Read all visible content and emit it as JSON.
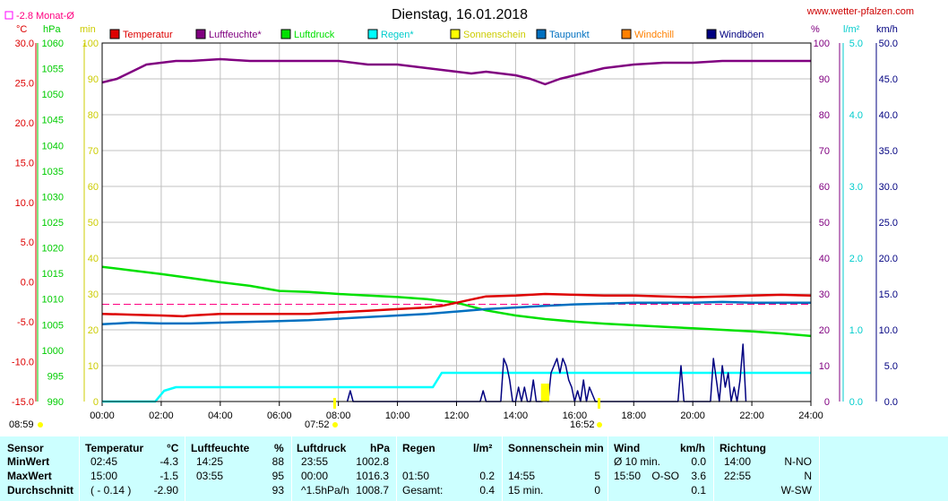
{
  "chart_data": {
    "type": "line",
    "title": "Dienstag, 16.01.2018",
    "source": "www.wetter-pfalzen.com",
    "monthly_avg_label": "-2.8 Monat-Ø",
    "monthly_avg_value": -2.8,
    "legend": [
      {
        "name": "Temperatur",
        "color": "#dd0000"
      },
      {
        "name": "Luftfeuchte*",
        "color": "#800080"
      },
      {
        "name": "Luftdruck",
        "color": "#00e000"
      },
      {
        "name": "Regen*",
        "color": "#00ffff"
      },
      {
        "name": "Sonnenschein",
        "color": "#ffff00"
      },
      {
        "name": "Taupunkt",
        "color": "#0070c0"
      },
      {
        "name": "Windchill",
        "color": "#ff8000"
      },
      {
        "name": "Windböen",
        "color": "#000080"
      }
    ],
    "axes": {
      "temp": {
        "unit": "°C",
        "color": "#dd0000",
        "ylim": [
          -15,
          30
        ],
        "ticks": [
          "30.0",
          "25.0",
          "20.0",
          "15.0",
          "10.0",
          "5.0",
          "0.0",
          "-5.0",
          "-10.0",
          "-15.0"
        ]
      },
      "pressure": {
        "unit": "hPa",
        "color": "#00cc00",
        "ylim": [
          990,
          1060
        ],
        "ticks": [
          "1060",
          "1055",
          "1050",
          "1045",
          "1040",
          "1035",
          "1030",
          "1025",
          "1020",
          "1015",
          "1010",
          "1005",
          "1000",
          "995",
          "990"
        ]
      },
      "sun": {
        "unit": "min",
        "color": "#cccc00",
        "ylim": [
          0,
          100
        ],
        "ticks": [
          "100",
          "90",
          "80",
          "70",
          "60",
          "50",
          "40",
          "30",
          "20",
          "10",
          "0"
        ]
      },
      "humidity": {
        "unit": "%",
        "color": "#800080",
        "ylim": [
          0,
          100
        ],
        "ticks": [
          "100",
          "90",
          "80",
          "70",
          "60",
          "50",
          "40",
          "30",
          "20",
          "10",
          "0"
        ]
      },
      "rain": {
        "unit": "l/m²",
        "color": "#00cccc",
        "ylim": [
          0,
          5
        ],
        "ticks": [
          "5.0",
          "4.0",
          "3.0",
          "2.0",
          "1.0",
          "0.0"
        ]
      },
      "wind": {
        "unit": "km/h",
        "color": "#000080",
        "ylim": [
          0,
          50
        ],
        "ticks": [
          "50.0",
          "45.0",
          "40.0",
          "35.0",
          "30.0",
          "25.0",
          "20.0",
          "15.0",
          "10.0",
          "5.0",
          "0.0"
        ]
      }
    },
    "x_ticks": [
      "00:00",
      "02:00",
      "04:00",
      "06:00",
      "08:00",
      "10:00",
      "12:00",
      "14:00",
      "16:00",
      "18:00",
      "20:00",
      "22:00",
      "24:00"
    ],
    "xlim": [
      0,
      24
    ],
    "grid": true,
    "sunrise": "07:52",
    "sunset": "16:52",
    "moonrise": "08:59",
    "series": [
      {
        "name": "Luftfeuchte*",
        "axis": "humidity",
        "color": "#800080",
        "x": [
          0,
          0.5,
          1,
          1.5,
          2,
          2.5,
          3,
          4,
          5,
          6,
          7,
          8,
          9,
          10,
          10.5,
          11,
          11.5,
          12,
          12.5,
          13,
          14,
          14.5,
          15,
          15.5,
          16,
          16.5,
          17,
          18,
          19,
          20,
          21,
          22,
          23,
          24
        ],
        "y": [
          89,
          90,
          92,
          94,
          94.5,
          95,
          95,
          95.5,
          95,
          95,
          95,
          95,
          94,
          94,
          93.5,
          93,
          92.5,
          92,
          91.5,
          92,
          91,
          90,
          88.5,
          90,
          91,
          92,
          93,
          94,
          94.5,
          94.5,
          95,
          95,
          95,
          95
        ]
      },
      {
        "name": "Luftdruck",
        "axis": "pressure",
        "color": "#00e000",
        "x": [
          0,
          1,
          2,
          3,
          4,
          5,
          6,
          7,
          8,
          9,
          10,
          11,
          12,
          13,
          14,
          15,
          16,
          17,
          18,
          19,
          20,
          21,
          22,
          23,
          24
        ],
        "y": [
          1016.3,
          1015.6,
          1014.9,
          1014.1,
          1013.3,
          1012.6,
          1011.6,
          1011.4,
          1011,
          1010.7,
          1010.4,
          1010,
          1009.3,
          1007.8,
          1006.8,
          1006.1,
          1005.6,
          1005.2,
          1004.9,
          1004.6,
          1004.3,
          1004,
          1003.7,
          1003.3,
          1002.8
        ]
      },
      {
        "name": "Temperatur",
        "axis": "temp",
        "color": "#dd0000",
        "x": [
          0,
          1,
          2,
          2.75,
          3,
          4,
          5,
          6,
          7,
          8,
          9,
          10,
          11,
          11.5,
          12,
          12.5,
          13,
          14,
          15,
          16,
          17,
          18,
          19,
          20,
          21,
          22,
          23,
          24
        ],
        "y": [
          -4.0,
          -4.1,
          -4.2,
          -4.3,
          -4.2,
          -4.0,
          -4.0,
          -4.0,
          -4.0,
          -3.8,
          -3.6,
          -3.4,
          -3.2,
          -3.0,
          -2.6,
          -2.2,
          -1.8,
          -1.7,
          -1.5,
          -1.6,
          -1.7,
          -1.7,
          -1.8,
          -1.9,
          -1.8,
          -1.7,
          -1.6,
          -1.7
        ]
      },
      {
        "name": "Taupunkt",
        "axis": "temp",
        "color": "#0070c0",
        "x": [
          0,
          1,
          2,
          3,
          4,
          5,
          6,
          7,
          8,
          9,
          10,
          11,
          12,
          13,
          14,
          15,
          16,
          17,
          18,
          19,
          20,
          21,
          22,
          23,
          24
        ],
        "y": [
          -5.3,
          -5.1,
          -5.2,
          -5.2,
          -5.1,
          -5.0,
          -4.9,
          -4.8,
          -4.6,
          -4.4,
          -4.2,
          -4.0,
          -3.7,
          -3.4,
          -3.2,
          -3.0,
          -2.8,
          -2.7,
          -2.6,
          -2.6,
          -2.6,
          -2.5,
          -2.6,
          -2.6,
          -2.6
        ]
      },
      {
        "name": "Regen*",
        "axis": "rain",
        "color": "#00ffff",
        "x": [
          0,
          1.8,
          2.1,
          2.5,
          3,
          4,
          5,
          6,
          7,
          8,
          9,
          10,
          11,
          11.2,
          11.5,
          12,
          13,
          14,
          16,
          18,
          20,
          22,
          24
        ],
        "y": [
          0,
          0,
          0.15,
          0.2,
          0.2,
          0.2,
          0.2,
          0.2,
          0.2,
          0.2,
          0.2,
          0.2,
          0.2,
          0.2,
          0.4,
          0.4,
          0.4,
          0.4,
          0.4,
          0.4,
          0.4,
          0.4,
          0.4
        ]
      },
      {
        "name": "Windböen",
        "axis": "wind",
        "color": "#000080",
        "x": [
          8.3,
          8.4,
          8.5,
          12.8,
          12.9,
          13.0,
          13.5,
          13.6,
          13.7,
          13.8,
          13.9,
          14.0,
          14.1,
          14.2,
          14.3,
          14.4,
          14.5,
          14.6,
          14.7,
          14.8,
          14.9,
          15.0,
          15.1,
          15.2,
          15.3,
          15.4,
          15.5,
          15.6,
          15.7,
          15.8,
          15.9,
          16.0,
          16.1,
          16.2,
          16.3,
          16.4,
          16.5,
          16.6,
          16.7,
          19.5,
          19.6,
          19.7,
          20.6,
          20.7,
          20.8,
          20.9,
          21.0,
          21.1,
          21.2,
          21.3,
          21.4,
          21.5,
          21.6,
          21.7,
          21.8
        ],
        "y": [
          0,
          1.5,
          0,
          0,
          1.5,
          0,
          0,
          6,
          5,
          3,
          0,
          0,
          2,
          0,
          2,
          0,
          0,
          3,
          0,
          0,
          0,
          2,
          0,
          4,
          5,
          6,
          4,
          6,
          5,
          3,
          2,
          0,
          1.5,
          0,
          3,
          0,
          2,
          1,
          0,
          0,
          5,
          0,
          0,
          6,
          3,
          0,
          5,
          2,
          4,
          0,
          2,
          0,
          3,
          8,
          0
        ]
      },
      {
        "name": "Sonnenschein",
        "axis": "sun",
        "color": "#ffff00",
        "x": [
          14.95,
          15.05
        ],
        "y": [
          5,
          5
        ]
      }
    ],
    "monthly_avg_line": {
      "axis": "temp",
      "value": -2.8,
      "color": "#ff0080"
    }
  },
  "table": {
    "headers": {
      "sensor": "Sensor",
      "temperatur": "Temperatur",
      "temperatur_unit": "°C",
      "luftfeuchte": "Luftfeuchte",
      "luftfeuchte_unit": "%",
      "luftdruck": "Luftdruck",
      "luftdruck_unit": "hPa",
      "regen": "Regen",
      "regen_unit": "l/m²",
      "sonnenschein": "Sonnenschein min",
      "wind": "Wind",
      "wind_unit": "km/h",
      "richtung": "Richtung"
    },
    "rows": [
      {
        "label": "MinWert",
        "temp_time": "02:45",
        "temp_val": "-4.3",
        "hum_time": "14:25",
        "hum_val": "88",
        "press_time": "23:55",
        "press_val": "1002.8",
        "rain_time": "",
        "rain_val": "",
        "sun_time": "",
        "sun_val": "",
        "wind_time": "Ø 10 min.",
        "wind_dir": "",
        "wind_val": "0.0",
        "dir_time": "14:00",
        "dir_val": "N-NO"
      },
      {
        "label": "MaxWert",
        "temp_time": "15:00",
        "temp_val": "-1.5",
        "hum_time": "03:55",
        "hum_val": "95",
        "press_time": "00:00",
        "press_val": "1016.3",
        "rain_time": "01:50",
        "rain_val": "0.2",
        "sun_time": "14:55",
        "sun_val": "5",
        "wind_time": "15:50",
        "wind_dir": "O-SO",
        "wind_val": "3.6",
        "dir_time": "22:55",
        "dir_val": "N"
      },
      {
        "label": "Durchschnitt",
        "temp_time": "( - 0.14 )",
        "temp_val": "-2.90",
        "hum_time": "",
        "hum_val": "93",
        "press_time": "^1.5hPa/h",
        "press_val": "1008.7",
        "rain_time": "Gesamt:",
        "rain_val": "0.4",
        "sun_time": "15 min.",
        "sun_val": "0",
        "wind_time": "",
        "wind_dir": "",
        "wind_val": "0.1",
        "dir_time": "",
        "dir_val": "W-SW"
      }
    ]
  }
}
